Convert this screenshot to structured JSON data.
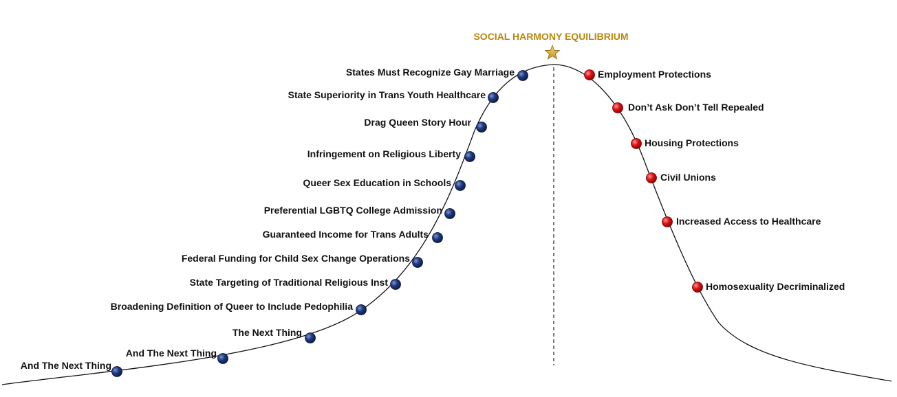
{
  "title": "SOCIAL HARMONY EQUILIBRIUM",
  "colors": {
    "title": "#b8860b",
    "star": "#e2b33b",
    "left_dot": "#17306e",
    "right_dot": "#dd1111",
    "curve": "#111111"
  },
  "icons": {
    "peak": "star-icon"
  },
  "left_items": [
    "States Must Recognize Gay Marriage",
    "State Superiority in Trans Youth Healthcare",
    "Drag Queen Story Hour",
    "Infringement on Religious Liberty",
    "Queer Sex Education in Schools",
    "Preferential LGBTQ College Admission",
    "Guaranteed Income for Trans Adults",
    "Federal Funding for Child Sex Change Operations",
    "State Targeting of Traditional Religious Inst",
    "Broadening Definition of Queer to Include Pedophilia",
    "The Next Thing",
    "And The Next Thing",
    "And The Next Thing"
  ],
  "right_items": [
    "Employment Protections",
    "Don’t Ask Don’t Tell Repealed",
    "Housing Protections",
    "Civil Unions",
    "Increased Access to Healthcare",
    "Homosexuality Decriminalized"
  ]
}
